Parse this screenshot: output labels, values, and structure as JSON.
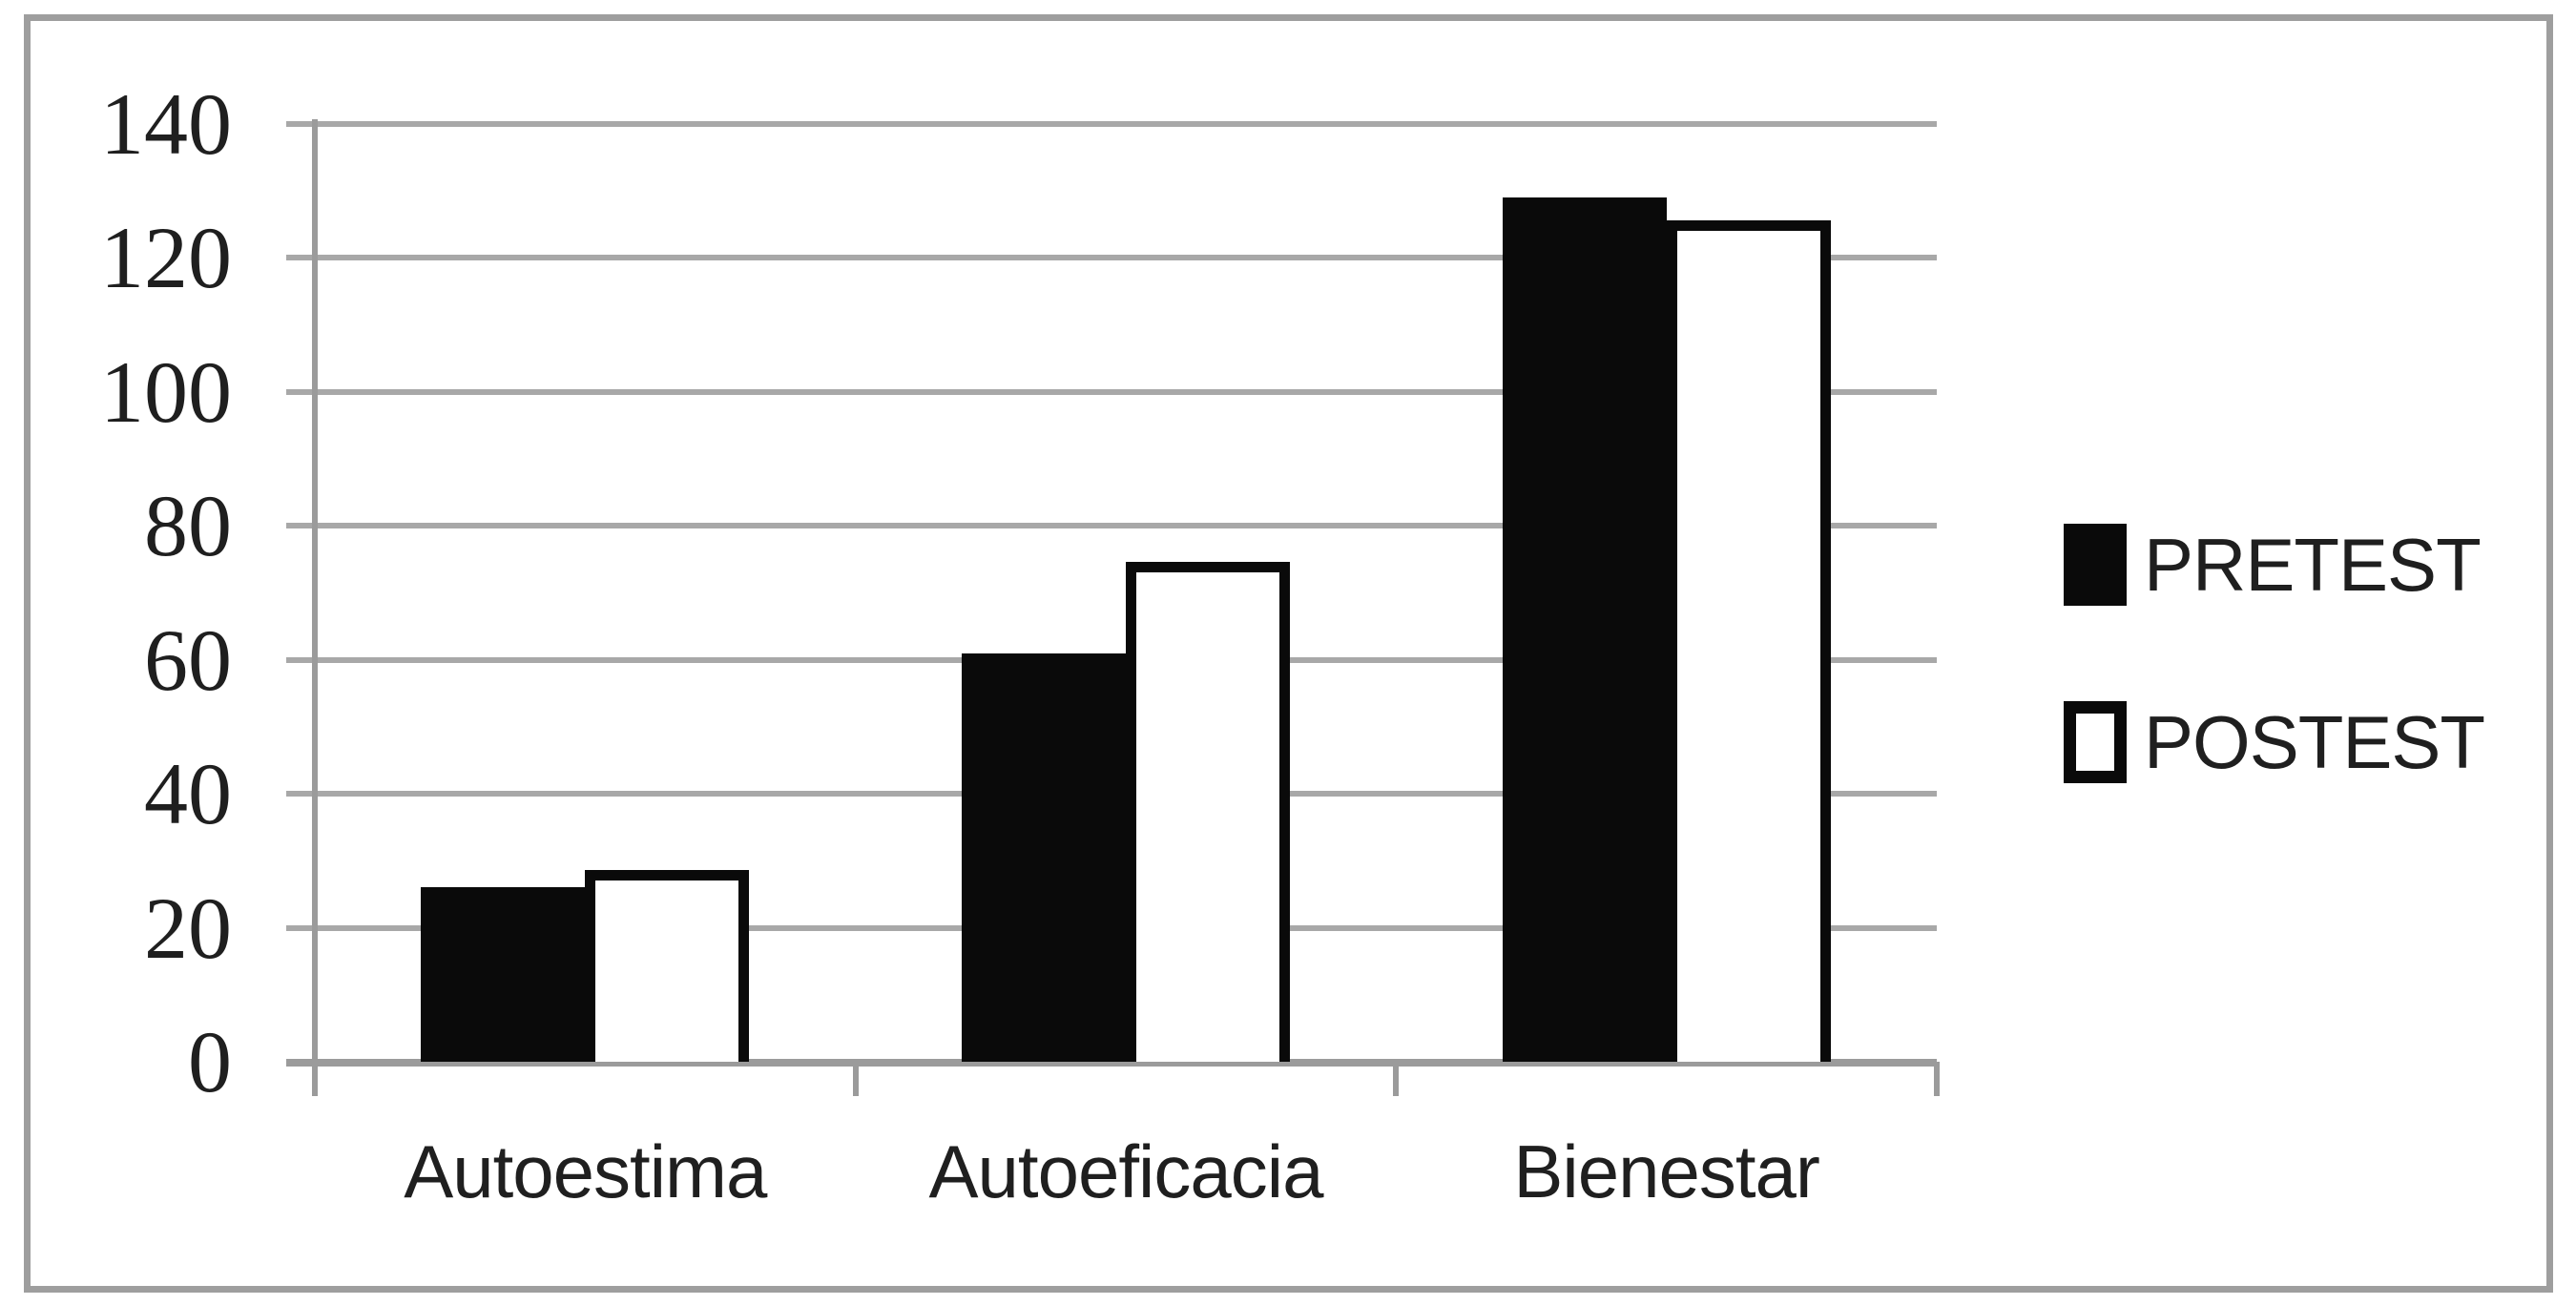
{
  "chart_data": {
    "type": "bar",
    "title": "",
    "categories": [
      "Autoestima",
      "Autoeficacia",
      "Bienestar"
    ],
    "series": [
      {
        "name": "PRETEST",
        "values": [
          26,
          61,
          129
        ],
        "style": "solid-black"
      },
      {
        "name": "POSTEST",
        "values": [
          27,
          73,
          124
        ],
        "style": "white-with-black-outline"
      }
    ],
    "xlabel": "",
    "ylabel": "",
    "ylim": [
      0,
      140
    ],
    "ytick_interval": 20,
    "yticks": [
      "0",
      "20",
      "40",
      "60",
      "80",
      "100",
      "120",
      "140"
    ],
    "grid": "horizontal",
    "legend_position": "right-middle"
  },
  "colors": {
    "pretest_fill": "#0a0a0a",
    "postest_fill": "#ffffff",
    "postest_border": "#0a0a0a",
    "gridline": "#a8a8a8",
    "axis": "#9b9b9b",
    "frame": "#9e9e9e",
    "text": "#1f1f1f",
    "background": "#ffffff"
  }
}
